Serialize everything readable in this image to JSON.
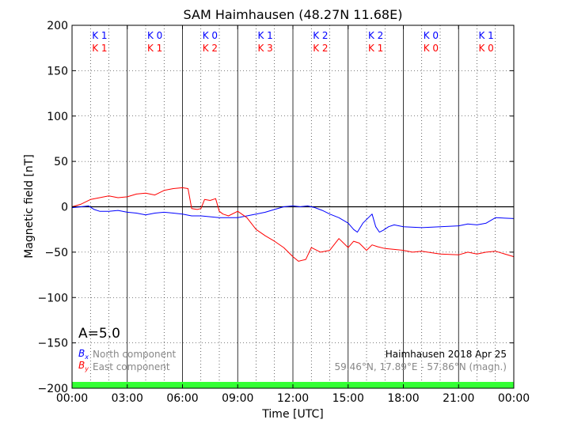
{
  "chart_data": {
    "type": "line",
    "title": "SAM Haimhausen (48.27N 11.68E)",
    "xlabel": "Time [UTC]",
    "ylabel": "Magnetic field [nT]",
    "xlim": [
      0,
      24
    ],
    "ylim": [
      -200,
      200
    ],
    "x_ticks": [
      "00:00",
      "03:00",
      "06:00",
      "09:00",
      "12:00",
      "15:00",
      "18:00",
      "21:00",
      "00:00"
    ],
    "y_ticks": [
      200,
      150,
      100,
      50,
      0,
      -50,
      -100,
      -150,
      -200
    ],
    "grid": true,
    "k_indices": {
      "bx_label": [
        "K 1",
        "K 0",
        "K 0",
        "K 1",
        "K 2",
        "K 2",
        "K 0",
        "K 1"
      ],
      "by_label": [
        "K 1",
        "K 1",
        "K 2",
        "K 3",
        "K 2",
        "K 1",
        "K 0",
        "K 0"
      ]
    },
    "a_index": "A=5.0",
    "series": [
      {
        "name": "North component",
        "symbol": "B_x",
        "color": "#0000ff",
        "x": [
          0,
          0.5,
          0.9,
          1.2,
          1.5,
          2.0,
          2.5,
          3.0,
          3.5,
          4.0,
          4.5,
          5.0,
          5.5,
          6.0,
          6.5,
          7.0,
          7.5,
          8.0,
          8.5,
          9.0,
          9.5,
          10.0,
          10.5,
          11.0,
          11.5,
          12.0,
          12.4,
          12.8,
          13.2,
          13.6,
          14.0,
          14.5,
          15.0,
          15.3,
          15.5,
          15.8,
          16.1,
          16.3,
          16.5,
          16.7,
          16.9,
          17.2,
          17.5,
          18.0,
          19.0,
          20.0,
          21.0,
          21.5,
          22.0,
          22.5,
          23.0,
          24.0
        ],
        "y": [
          -1,
          0,
          1,
          -3,
          -5,
          -5,
          -4,
          -6,
          -7,
          -9,
          -7,
          -6,
          -7,
          -8,
          -10,
          -10,
          -11,
          -12,
          -12,
          -12,
          -10,
          -8,
          -6,
          -3,
          0,
          1,
          0,
          1,
          -1,
          -4,
          -8,
          -12,
          -18,
          -25,
          -28,
          -18,
          -12,
          -8,
          -22,
          -28,
          -26,
          -22,
          -20,
          -22,
          -23,
          -22,
          -21,
          -19,
          -20,
          -18,
          -12,
          -13
        ]
      },
      {
        "name": "East component",
        "symbol": "B_y",
        "color": "#ff0000",
        "x": [
          0,
          0.5,
          1.0,
          1.5,
          2.0,
          2.5,
          3.0,
          3.5,
          4.0,
          4.5,
          5.0,
          5.5,
          6.0,
          6.3,
          6.5,
          6.8,
          7.0,
          7.2,
          7.5,
          7.8,
          8.0,
          8.2,
          8.5,
          9.0,
          9.5,
          10.0,
          10.5,
          11.0,
          11.5,
          12.0,
          12.3,
          12.7,
          13.0,
          13.5,
          14.0,
          14.5,
          15.0,
          15.3,
          15.6,
          16.0,
          16.3,
          16.6,
          17.0,
          17.5,
          18.0,
          18.5,
          19.0,
          20.0,
          21.0,
          21.5,
          22.0,
          22.5,
          23.0,
          24.0
        ],
        "y": [
          0,
          3,
          8,
          10,
          12,
          10,
          11,
          14,
          15,
          13,
          18,
          20,
          21,
          20,
          -2,
          -3,
          -2,
          8,
          7,
          9,
          -5,
          -8,
          -10,
          -5,
          -12,
          -25,
          -32,
          -38,
          -45,
          -55,
          -60,
          -58,
          -45,
          -50,
          -48,
          -35,
          -45,
          -38,
          -40,
          -48,
          -42,
          -44,
          -46,
          -47,
          -48,
          -50,
          -49,
          -52,
          -53,
          -50,
          -52,
          -50,
          -49,
          -55
        ]
      }
    ],
    "legend_position": "bottom-left",
    "station_label": "Haimhausen 2018 Apr 25",
    "coords_label": "59.46°N, 17.89°E - 57.86°N (magn.)",
    "bar_color": "#33ff33"
  }
}
